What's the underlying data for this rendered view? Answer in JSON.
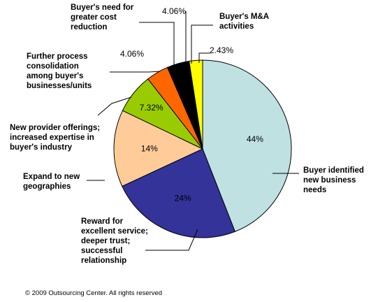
{
  "chart_data": {
    "type": "pie",
    "slices": [
      {
        "name": "Buyer identified new business needs",
        "value": 44,
        "label": "44%",
        "color": "#bfe1e1"
      },
      {
        "name": "Reward for excellent service; deeper trust; successful relationship",
        "value": 24,
        "label": "24%",
        "color": "#33339a"
      },
      {
        "name": "Expand to new geographies",
        "value": 14,
        "label": "14%",
        "color": "#ffcc99"
      },
      {
        "name": "New provider offerings; increased expertise in buyer's industry",
        "value": 7.32,
        "label": "7.32%",
        "color": "#99cc00"
      },
      {
        "name": "Further process consolidation among buyer's businesses/units",
        "value": 4.06,
        "label": "4.06%",
        "color": "#ff6600"
      },
      {
        "name": "Buyer's need for greater cost reduction",
        "value": 4.06,
        "label": "4.06%",
        "color": "#000000"
      },
      {
        "name": "Buyer's M&A activities",
        "value": 2.43,
        "label": "2.43%",
        "color": "#ffff00"
      }
    ]
  },
  "labels": {
    "buyer_needs": "Buyer identified new business needs",
    "reward": "Reward for excellent service; deeper trust; successful relationship",
    "geographies": "Expand to new geographies",
    "offerings": "New provider offerings; increased expertise in buyer's industry",
    "consolidation": "Further process consolidation among buyer's businesses/units",
    "cost": "Buyer's need for greater cost reduction",
    "ma": "Buyer's M&A activities"
  },
  "footer": {
    "copyright": "© 2009 Outsourcing Center. All rights reserved"
  }
}
